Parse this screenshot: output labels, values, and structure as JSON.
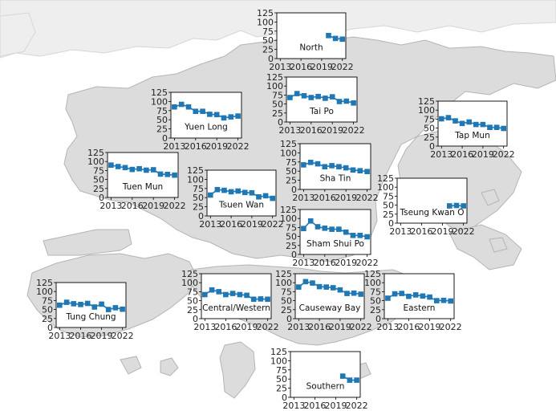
{
  "colors": {
    "land": "#dcdcdc",
    "land_edge": "#b4b4b4",
    "marker": "#1f77b4",
    "frame": "#000000"
  },
  "chart_data": [
    {
      "type": "scatter",
      "label": "North",
      "x": [
        2020,
        2021,
        2022
      ],
      "values": [
        63,
        55,
        53
      ],
      "xticks": [
        "2013",
        "2016",
        "2019",
        "2022"
      ],
      "yticks": [
        "0",
        "25",
        "50",
        "75",
        "100",
        "125"
      ],
      "xlim": [
        2012.5,
        2022.5
      ],
      "ylim": [
        0,
        125
      ]
    },
    {
      "type": "scatter",
      "label": "Tai Po",
      "x": [
        2013,
        2014,
        2015,
        2016,
        2017,
        2018,
        2019,
        2020,
        2021,
        2022
      ],
      "values": [
        68,
        79,
        73,
        68,
        71,
        66,
        70,
        57,
        58,
        53
      ],
      "xticks": [
        "2013",
        "2016",
        "2019",
        "2022"
      ],
      "yticks": [
        "0",
        "25",
        "50",
        "75",
        "100",
        "125"
      ],
      "xlim": [
        2012.5,
        2022.5
      ],
      "ylim": [
        0,
        125
      ]
    },
    {
      "type": "scatter",
      "label": "Yuen Long",
      "x": [
        2013,
        2014,
        2015,
        2016,
        2017,
        2018,
        2019,
        2020,
        2021,
        2022
      ],
      "values": [
        85,
        92,
        85,
        73,
        73,
        65,
        64,
        55,
        58,
        60
      ],
      "xticks": [
        "2013",
        "2016",
        "2019",
        "2022"
      ],
      "yticks": [
        "0",
        "25",
        "50",
        "75",
        "100",
        "125"
      ],
      "xlim": [
        2012.5,
        2022.5
      ],
      "ylim": [
        0,
        125
      ]
    },
    {
      "type": "scatter",
      "label": "Tap Mun",
      "x": [
        2013,
        2014,
        2015,
        2016,
        2017,
        2018,
        2019,
        2020,
        2021,
        2022
      ],
      "values": [
        76,
        79,
        70,
        63,
        67,
        60,
        60,
        52,
        52,
        49
      ],
      "xticks": [
        "2013",
        "2016",
        "2019",
        "2022"
      ],
      "yticks": [
        "0",
        "25",
        "50",
        "75",
        "100",
        "125"
      ],
      "xlim": [
        2012.5,
        2022.5
      ],
      "ylim": [
        0,
        125
      ]
    },
    {
      "type": "scatter",
      "label": "Tuen Mun",
      "x": [
        2013,
        2014,
        2015,
        2016,
        2017,
        2018,
        2019,
        2020,
        2021,
        2022
      ],
      "values": [
        90,
        86,
        83,
        78,
        80,
        76,
        77,
        65,
        64,
        62
      ],
      "xticks": [
        "2013",
        "2016",
        "2019",
        "2022"
      ],
      "yticks": [
        "0",
        "25",
        "50",
        "75",
        "100",
        "125"
      ],
      "xlim": [
        2012.5,
        2022.5
      ],
      "ylim": [
        0,
        125
      ]
    },
    {
      "type": "scatter",
      "label": "Sha Tin",
      "x": [
        2013,
        2014,
        2015,
        2016,
        2017,
        2018,
        2019,
        2020,
        2021,
        2022
      ],
      "values": [
        67,
        74,
        70,
        62,
        65,
        62,
        59,
        53,
        51,
        49
      ],
      "xticks": [
        "2013",
        "2016",
        "2019",
        "2022"
      ],
      "yticks": [
        "0",
        "25",
        "50",
        "75",
        "100",
        "125"
      ],
      "xlim": [
        2012.5,
        2022.5
      ],
      "ylim": [
        0,
        125
      ]
    },
    {
      "type": "scatter",
      "label": "Tsuen Wan",
      "x": [
        2013,
        2014,
        2015,
        2016,
        2017,
        2018,
        2019,
        2020,
        2021,
        2022
      ],
      "values": [
        57,
        72,
        70,
        66,
        68,
        64,
        63,
        52,
        55,
        48
      ],
      "xticks": [
        "2013",
        "2016",
        "2019",
        "2022"
      ],
      "yticks": [
        "0",
        "25",
        "50",
        "75",
        "100",
        "125"
      ],
      "xlim": [
        2012.5,
        2022.5
      ],
      "ylim": [
        0,
        125
      ]
    },
    {
      "type": "scatter",
      "label": "Tseung Kwan O",
      "x": [
        2020,
        2021,
        2022
      ],
      "values": [
        48,
        49,
        48
      ],
      "xticks": [
        "2013",
        "2016",
        "2019",
        "2022"
      ],
      "yticks": [
        "0",
        "25",
        "50",
        "75",
        "100",
        "125"
      ],
      "xlim": [
        2012.5,
        2022.5
      ],
      "ylim": [
        0,
        125
      ]
    },
    {
      "type": "scatter",
      "label": "Sham Shui Po",
      "x": [
        2013,
        2014,
        2015,
        2016,
        2017,
        2018,
        2019,
        2020,
        2021,
        2022
      ],
      "values": [
        72,
        93,
        77,
        73,
        70,
        70,
        62,
        53,
        53,
        49
      ],
      "xticks": [
        "2013",
        "2016",
        "2019",
        "2022"
      ],
      "yticks": [
        "0",
        "25",
        "50",
        "75",
        "100",
        "125"
      ],
      "xlim": [
        2012.5,
        2022.5
      ],
      "ylim": [
        0,
        125
      ]
    },
    {
      "type": "scatter",
      "label": "Tung Chung",
      "x": [
        2013,
        2014,
        2015,
        2016,
        2017,
        2018,
        2019,
        2020,
        2021,
        2022
      ],
      "values": [
        62,
        70,
        66,
        64,
        67,
        57,
        65,
        50,
        55,
        51
      ],
      "xticks": [
        "2013",
        "2016",
        "2019",
        "2022"
      ],
      "yticks": [
        "0",
        "25",
        "50",
        "75",
        "100",
        "125"
      ],
      "xlim": [
        2012.5,
        2022.5
      ],
      "ylim": [
        0,
        125
      ]
    },
    {
      "type": "scatter",
      "label": "Central/Western",
      "x": [
        2013,
        2014,
        2015,
        2016,
        2017,
        2018,
        2019,
        2020,
        2021,
        2022
      ],
      "values": [
        67,
        80,
        75,
        67,
        70,
        67,
        65,
        54,
        55,
        54
      ],
      "xticks": [
        "2013",
        "2016",
        "2019",
        "2022"
      ],
      "yticks": [
        "0",
        "25",
        "50",
        "75",
        "100",
        "125"
      ],
      "xlim": [
        2012.5,
        2022.5
      ],
      "ylim": [
        0,
        125
      ]
    },
    {
      "type": "scatter",
      "label": "Causeway Bay",
      "x": [
        2013,
        2014,
        2015,
        2016,
        2017,
        2018,
        2019,
        2020,
        2021,
        2022
      ],
      "values": [
        88,
        103,
        99,
        89,
        88,
        86,
        80,
        70,
        71,
        68
      ],
      "xticks": [
        "2013",
        "2016",
        "2019",
        "2022"
      ],
      "yticks": [
        "0",
        "25",
        "50",
        "75",
        "100",
        "125"
      ],
      "xlim": [
        2012.5,
        2022.5
      ],
      "ylim": [
        0,
        125
      ]
    },
    {
      "type": "scatter",
      "label": "Eastern",
      "x": [
        2013,
        2014,
        2015,
        2016,
        2017,
        2018,
        2019,
        2020,
        2021,
        2022
      ],
      "values": [
        57,
        69,
        70,
        62,
        66,
        63,
        60,
        50,
        51,
        49
      ],
      "xticks": [
        "2013",
        "2016",
        "2019",
        "2022"
      ],
      "yticks": [
        "0",
        "25",
        "50",
        "75",
        "100",
        "125"
      ],
      "xlim": [
        2012.5,
        2022.5
      ],
      "ylim": [
        0,
        125
      ]
    },
    {
      "type": "scatter",
      "label": "Southern",
      "x": [
        2020,
        2021,
        2022
      ],
      "values": [
        58,
        47,
        47
      ],
      "xticks": [
        "2013",
        "2016",
        "2019",
        "2022"
      ],
      "yticks": [
        "0",
        "25",
        "50",
        "75",
        "100",
        "125"
      ],
      "xlim": [
        2012.5,
        2022.5
      ],
      "ylim": [
        0,
        125
      ]
    }
  ]
}
